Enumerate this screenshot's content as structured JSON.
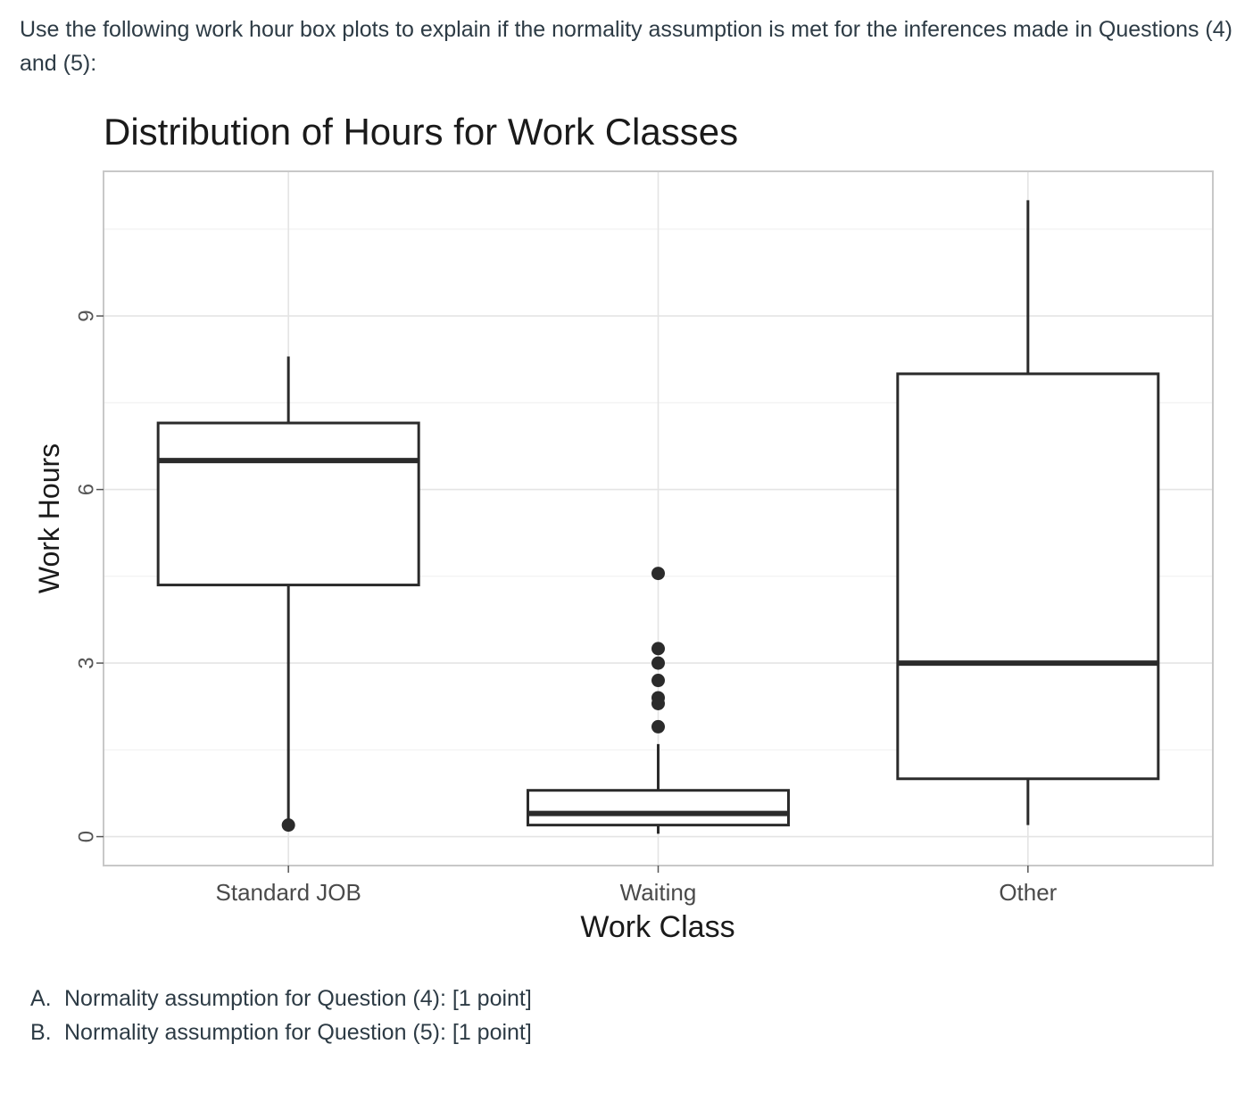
{
  "question": {
    "text": "Use the following work hour box plots to explain if the normality assumption is met for the inferences made in Questions (4) and (5):"
  },
  "chart_data": {
    "type": "box",
    "title": "Distribution of Hours for Work Classes",
    "xlabel": "Work Class",
    "ylabel": "Work Hours",
    "ylim": [
      -0.5,
      11.5
    ],
    "yticks": [
      0,
      3,
      6,
      9
    ],
    "grid": true,
    "categories": [
      "Standard JOB",
      "Waiting",
      "Other"
    ],
    "boxes": [
      {
        "category": "Standard JOB",
        "whisker_low": 0.2,
        "q1": 4.35,
        "median": 6.5,
        "q3": 7.15,
        "whisker_high": 8.3,
        "outliers": [
          0.2
        ]
      },
      {
        "category": "Waiting",
        "whisker_low": 0.05,
        "q1": 0.2,
        "median": 0.4,
        "q3": 0.8,
        "whisker_high": 1.6,
        "outliers": [
          1.9,
          2.3,
          2.4,
          2.7,
          3.0,
          3.25,
          4.55
        ]
      },
      {
        "category": "Other",
        "whisker_low": 0.2,
        "q1": 1.0,
        "median": 3.0,
        "q3": 8.0,
        "whisker_high": 11.0,
        "outliers": []
      }
    ]
  },
  "answers": [
    {
      "marker": "A.",
      "text": "Normality assumption for Question (4): [1 point]"
    },
    {
      "marker": "B.",
      "text": "Normality assumption for Question (5): [1 point]"
    }
  ]
}
